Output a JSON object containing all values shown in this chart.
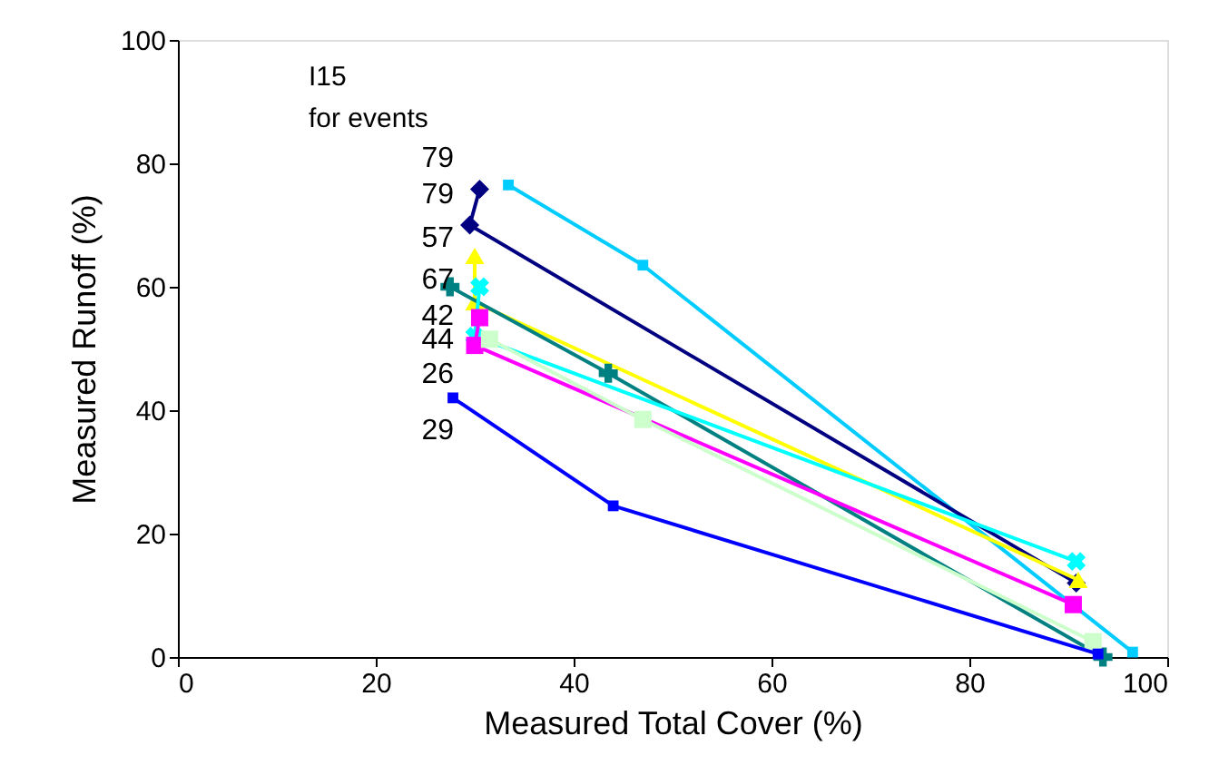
{
  "chart_data": {
    "type": "line",
    "xlabel": "Measured Total Cover (%)",
    "ylabel": "Measured Runoff (%)",
    "xlim": [
      0,
      100
    ],
    "xticks": [
      0,
      20,
      40,
      60,
      80,
      100
    ],
    "ylim": [
      0,
      100
    ],
    "yticks": [
      0,
      20,
      40,
      60,
      80,
      100
    ],
    "grid": false,
    "series": [
      {
        "color": "#00ccff",
        "marker": "square",
        "x": [
          33.4,
          47,
          96.5
        ],
        "values": [
          76.5,
          63.5,
          0.8
        ]
      },
      {
        "color": "#000080",
        "marker": "diamond",
        "x": [
          30.5,
          29.5,
          90.8
        ],
        "values": [
          75.8,
          70,
          12
        ]
      },
      {
        "color": "#ffff00",
        "marker": "triangle",
        "x": [
          30,
          30,
          91
        ],
        "values": [
          65,
          57.5,
          12.5
        ]
      },
      {
        "color": "#008080",
        "marker": "cross",
        "x": [
          27.5,
          43.5,
          93.5
        ],
        "values": [
          60,
          46,
          0
        ]
      },
      {
        "color": "#00ffff",
        "marker": "x",
        "x": [
          30.5,
          30,
          90.8
        ],
        "values": [
          60,
          52,
          15.5
        ]
      },
      {
        "color": "#ff00ff",
        "marker": "square",
        "x": [
          30.5,
          30,
          90.5
        ],
        "values": [
          55,
          50.5,
          8.5
        ]
      },
      {
        "color": "#ccffcc",
        "marker": "square",
        "x": [
          31.5,
          47,
          92.5
        ],
        "values": [
          51.5,
          38.5,
          2.5
        ]
      },
      {
        "color": "#0000ff",
        "marker": "square",
        "x": [
          27.8,
          44,
          93
        ],
        "values": [
          42,
          24.5,
          0.5
        ]
      }
    ],
    "annotations": [
      "I15",
      "for events",
      "79",
      "79",
      "57",
      "67",
      "42",
      "44",
      "26",
      "29"
    ]
  }
}
